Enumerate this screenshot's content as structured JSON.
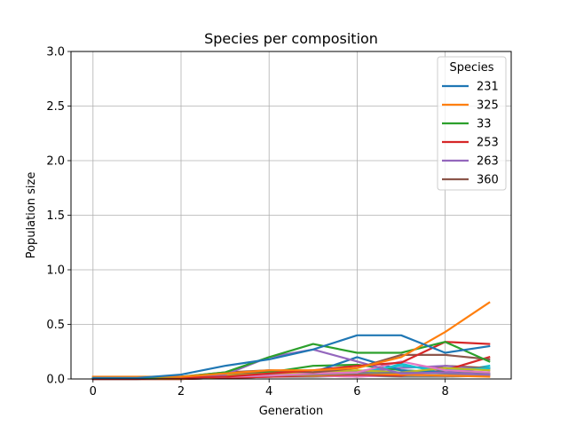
{
  "chart_data": {
    "type": "line",
    "title": "Species per composition",
    "xlabel": "Generation",
    "ylabel": "Population size",
    "xlim": [
      -0.5,
      9.5
    ],
    "ylim": [
      0,
      3.0
    ],
    "xticks": [
      "0",
      "2",
      "4",
      "6",
      "8"
    ],
    "xtick_values": [
      0,
      2,
      4,
      6,
      8
    ],
    "yticks": [
      "0.0",
      "0.5",
      "1.0",
      "1.5",
      "2.0",
      "2.5",
      "3.0"
    ],
    "ytick_values": [
      0,
      0.5,
      1.0,
      1.5,
      2.0,
      2.5,
      3.0
    ],
    "grid": true,
    "legend": {
      "title": "Species",
      "placement": "top-right"
    },
    "x": [
      0,
      1,
      2,
      3,
      4,
      5,
      6,
      7,
      8,
      9
    ],
    "series": [
      {
        "name": "231",
        "color": "#1f77b4",
        "values": [
          0.01,
          0.01,
          0.04,
          0.12,
          0.18,
          0.27,
          0.4,
          0.4,
          0.24,
          0.3
        ]
      },
      {
        "name": "325",
        "color": "#ff7f0e",
        "values": [
          0.02,
          0.02,
          0.02,
          0.05,
          0.08,
          0.08,
          0.1,
          0.2,
          0.43,
          0.7
        ]
      },
      {
        "name": "33",
        "color": "#2ca02c",
        "values": [
          0.01,
          0.01,
          0.02,
          0.06,
          0.2,
          0.32,
          0.24,
          0.24,
          0.34,
          0.16
        ]
      },
      {
        "name": "253",
        "color": "#d62728",
        "values": [
          0.0,
          0.0,
          0.01,
          0.02,
          0.05,
          0.08,
          0.12,
          0.15,
          0.34,
          0.32
        ]
      },
      {
        "name": "263",
        "color": "#9467bd",
        "values": [
          0.0,
          0.01,
          0.02,
          0.04,
          0.2,
          0.27,
          0.16,
          0.05,
          0.06,
          0.04
        ]
      },
      {
        "name": "360",
        "color": "#8c564b",
        "values": [
          0.0,
          0.0,
          0.02,
          0.06,
          0.08,
          0.06,
          0.1,
          0.22,
          0.22,
          0.18
        ]
      },
      {
        "color": "#e377c2",
        "values": [
          0.0,
          0.0,
          0.01,
          0.02,
          0.03,
          0.05,
          0.06,
          0.16,
          0.08,
          0.06
        ]
      },
      {
        "color": "#7f7f7f",
        "values": [
          0.0,
          0.0,
          0.01,
          0.02,
          0.03,
          0.04,
          0.05,
          0.06,
          0.05,
          0.04
        ]
      },
      {
        "color": "#bcbd22",
        "values": [
          0.0,
          0.0,
          0.01,
          0.03,
          0.05,
          0.06,
          0.08,
          0.06,
          0.1,
          0.08
        ]
      },
      {
        "color": "#17becf",
        "values": [
          0.0,
          0.0,
          0.01,
          0.02,
          0.04,
          0.05,
          0.07,
          0.12,
          0.08,
          0.1
        ]
      },
      {
        "color": "#1f77b4",
        "values": [
          0.0,
          0.0,
          0.01,
          0.03,
          0.05,
          0.06,
          0.2,
          0.08,
          0.06,
          0.1
        ]
      },
      {
        "color": "#ff7f0e",
        "values": [
          0.0,
          0.0,
          0.0,
          0.02,
          0.04,
          0.03,
          0.05,
          0.04,
          0.03,
          0.02
        ]
      },
      {
        "color": "#2ca02c",
        "values": [
          0.0,
          0.0,
          0.01,
          0.02,
          0.06,
          0.12,
          0.13,
          0.08,
          0.06,
          0.05
        ]
      },
      {
        "color": "#d62728",
        "values": [
          0.0,
          0.0,
          0.0,
          0.01,
          0.02,
          0.03,
          0.04,
          0.03,
          0.08,
          0.2
        ]
      },
      {
        "color": "#9467bd",
        "values": [
          0.0,
          0.0,
          0.0,
          0.02,
          0.03,
          0.04,
          0.06,
          0.1,
          0.12,
          0.08
        ]
      },
      {
        "color": "#8c564b",
        "values": [
          0.0,
          0.0,
          0.01,
          0.04,
          0.07,
          0.05,
          0.04,
          0.03,
          0.12,
          0.1
        ]
      },
      {
        "color": "#e377c2",
        "values": [
          0.0,
          0.0,
          0.0,
          0.01,
          0.02,
          0.03,
          0.02,
          0.04,
          0.03,
          0.05
        ]
      },
      {
        "color": "#7f7f7f",
        "values": [
          0.0,
          0.0,
          0.0,
          0.01,
          0.02,
          0.02,
          0.03,
          0.02,
          0.02,
          0.03
        ]
      },
      {
        "color": "#bcbd22",
        "values": [
          0.0,
          0.0,
          0.0,
          0.01,
          0.02,
          0.03,
          0.02,
          0.05,
          0.06,
          0.04
        ]
      },
      {
        "color": "#17becf",
        "values": [
          0.0,
          0.0,
          0.0,
          0.01,
          0.03,
          0.04,
          0.02,
          0.14,
          0.05,
          0.12
        ]
      }
    ]
  }
}
